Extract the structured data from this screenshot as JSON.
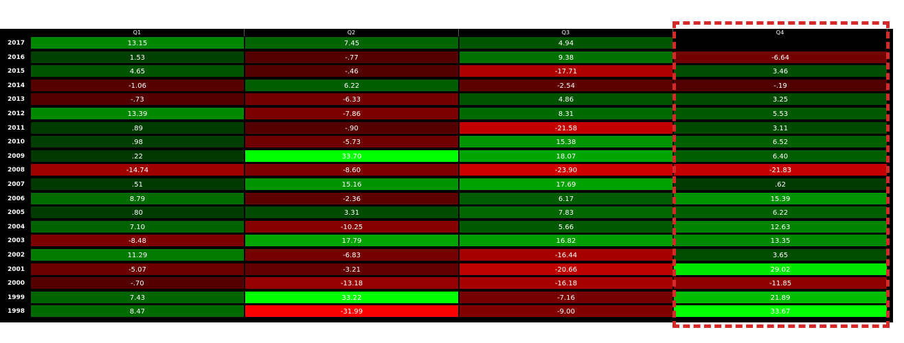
{
  "chart_data": {
    "type": "heatmap",
    "columns": [
      "Q1",
      "Q2",
      "Q3",
      "Q4"
    ],
    "rows": [
      {
        "year": "2017",
        "values": [
          "13.15",
          "7.45",
          "4.94",
          ""
        ]
      },
      {
        "year": "2016",
        "values": [
          "1.53",
          "-.77",
          "9.38",
          "-6.64"
        ]
      },
      {
        "year": "2015",
        "values": [
          "4.65",
          "-.46",
          "-17.71",
          "3.46"
        ]
      },
      {
        "year": "2014",
        "values": [
          "-1.06",
          "6.22",
          "-2.54",
          "-.19"
        ]
      },
      {
        "year": "2013",
        "values": [
          "-.73",
          "-6.33",
          "4.86",
          "3.25"
        ]
      },
      {
        "year": "2012",
        "values": [
          "13.39",
          "-7.86",
          "8.31",
          "5.53"
        ]
      },
      {
        "year": "2011",
        "values": [
          ".89",
          "-.90",
          "-21.58",
          "3.11"
        ]
      },
      {
        "year": "2010",
        "values": [
          ".98",
          "-5.73",
          "15.38",
          "6.52"
        ]
      },
      {
        "year": "2009",
        "values": [
          ".22",
          "33.70",
          "18.07",
          "6.40"
        ]
      },
      {
        "year": "2008",
        "values": [
          "-14.74",
          "-8.60",
          "-23.90",
          "-21.83"
        ]
      },
      {
        "year": "2007",
        "values": [
          ".51",
          "15.16",
          "17.69",
          ".62"
        ]
      },
      {
        "year": "2006",
        "values": [
          "8.79",
          "-2.36",
          "6.17",
          "15.39"
        ]
      },
      {
        "year": "2005",
        "values": [
          ".80",
          "3.31",
          "7.83",
          "6.22"
        ]
      },
      {
        "year": "2004",
        "values": [
          "7.10",
          "-10.25",
          "5.66",
          "12.63"
        ]
      },
      {
        "year": "2003",
        "values": [
          "-8.48",
          "17.79",
          "16.82",
          "13.35"
        ]
      },
      {
        "year": "2002",
        "values": [
          "11.29",
          "-6.83",
          "-16.44",
          "3.65"
        ]
      },
      {
        "year": "2001",
        "values": [
          "-5.07",
          "-3.21",
          "-20.66",
          "29.02"
        ]
      },
      {
        "year": "2000",
        "values": [
          "-.70",
          "-13.18",
          "-16.18",
          "-11.85"
        ]
      },
      {
        "year": "1999",
        "values": [
          "7.43",
          "33.22",
          "-7.16",
          "21.89"
        ]
      },
      {
        "year": "1998",
        "values": [
          "8.47",
          "-31.99",
          "-9.00",
          "33.67"
        ]
      }
    ],
    "highlighted_column": "Q4",
    "colors": {
      "positive_max": "#00ff00",
      "negative_max": "#ff0000",
      "neutral": "#3a0000",
      "highlight_box": "#d42a2a"
    }
  }
}
